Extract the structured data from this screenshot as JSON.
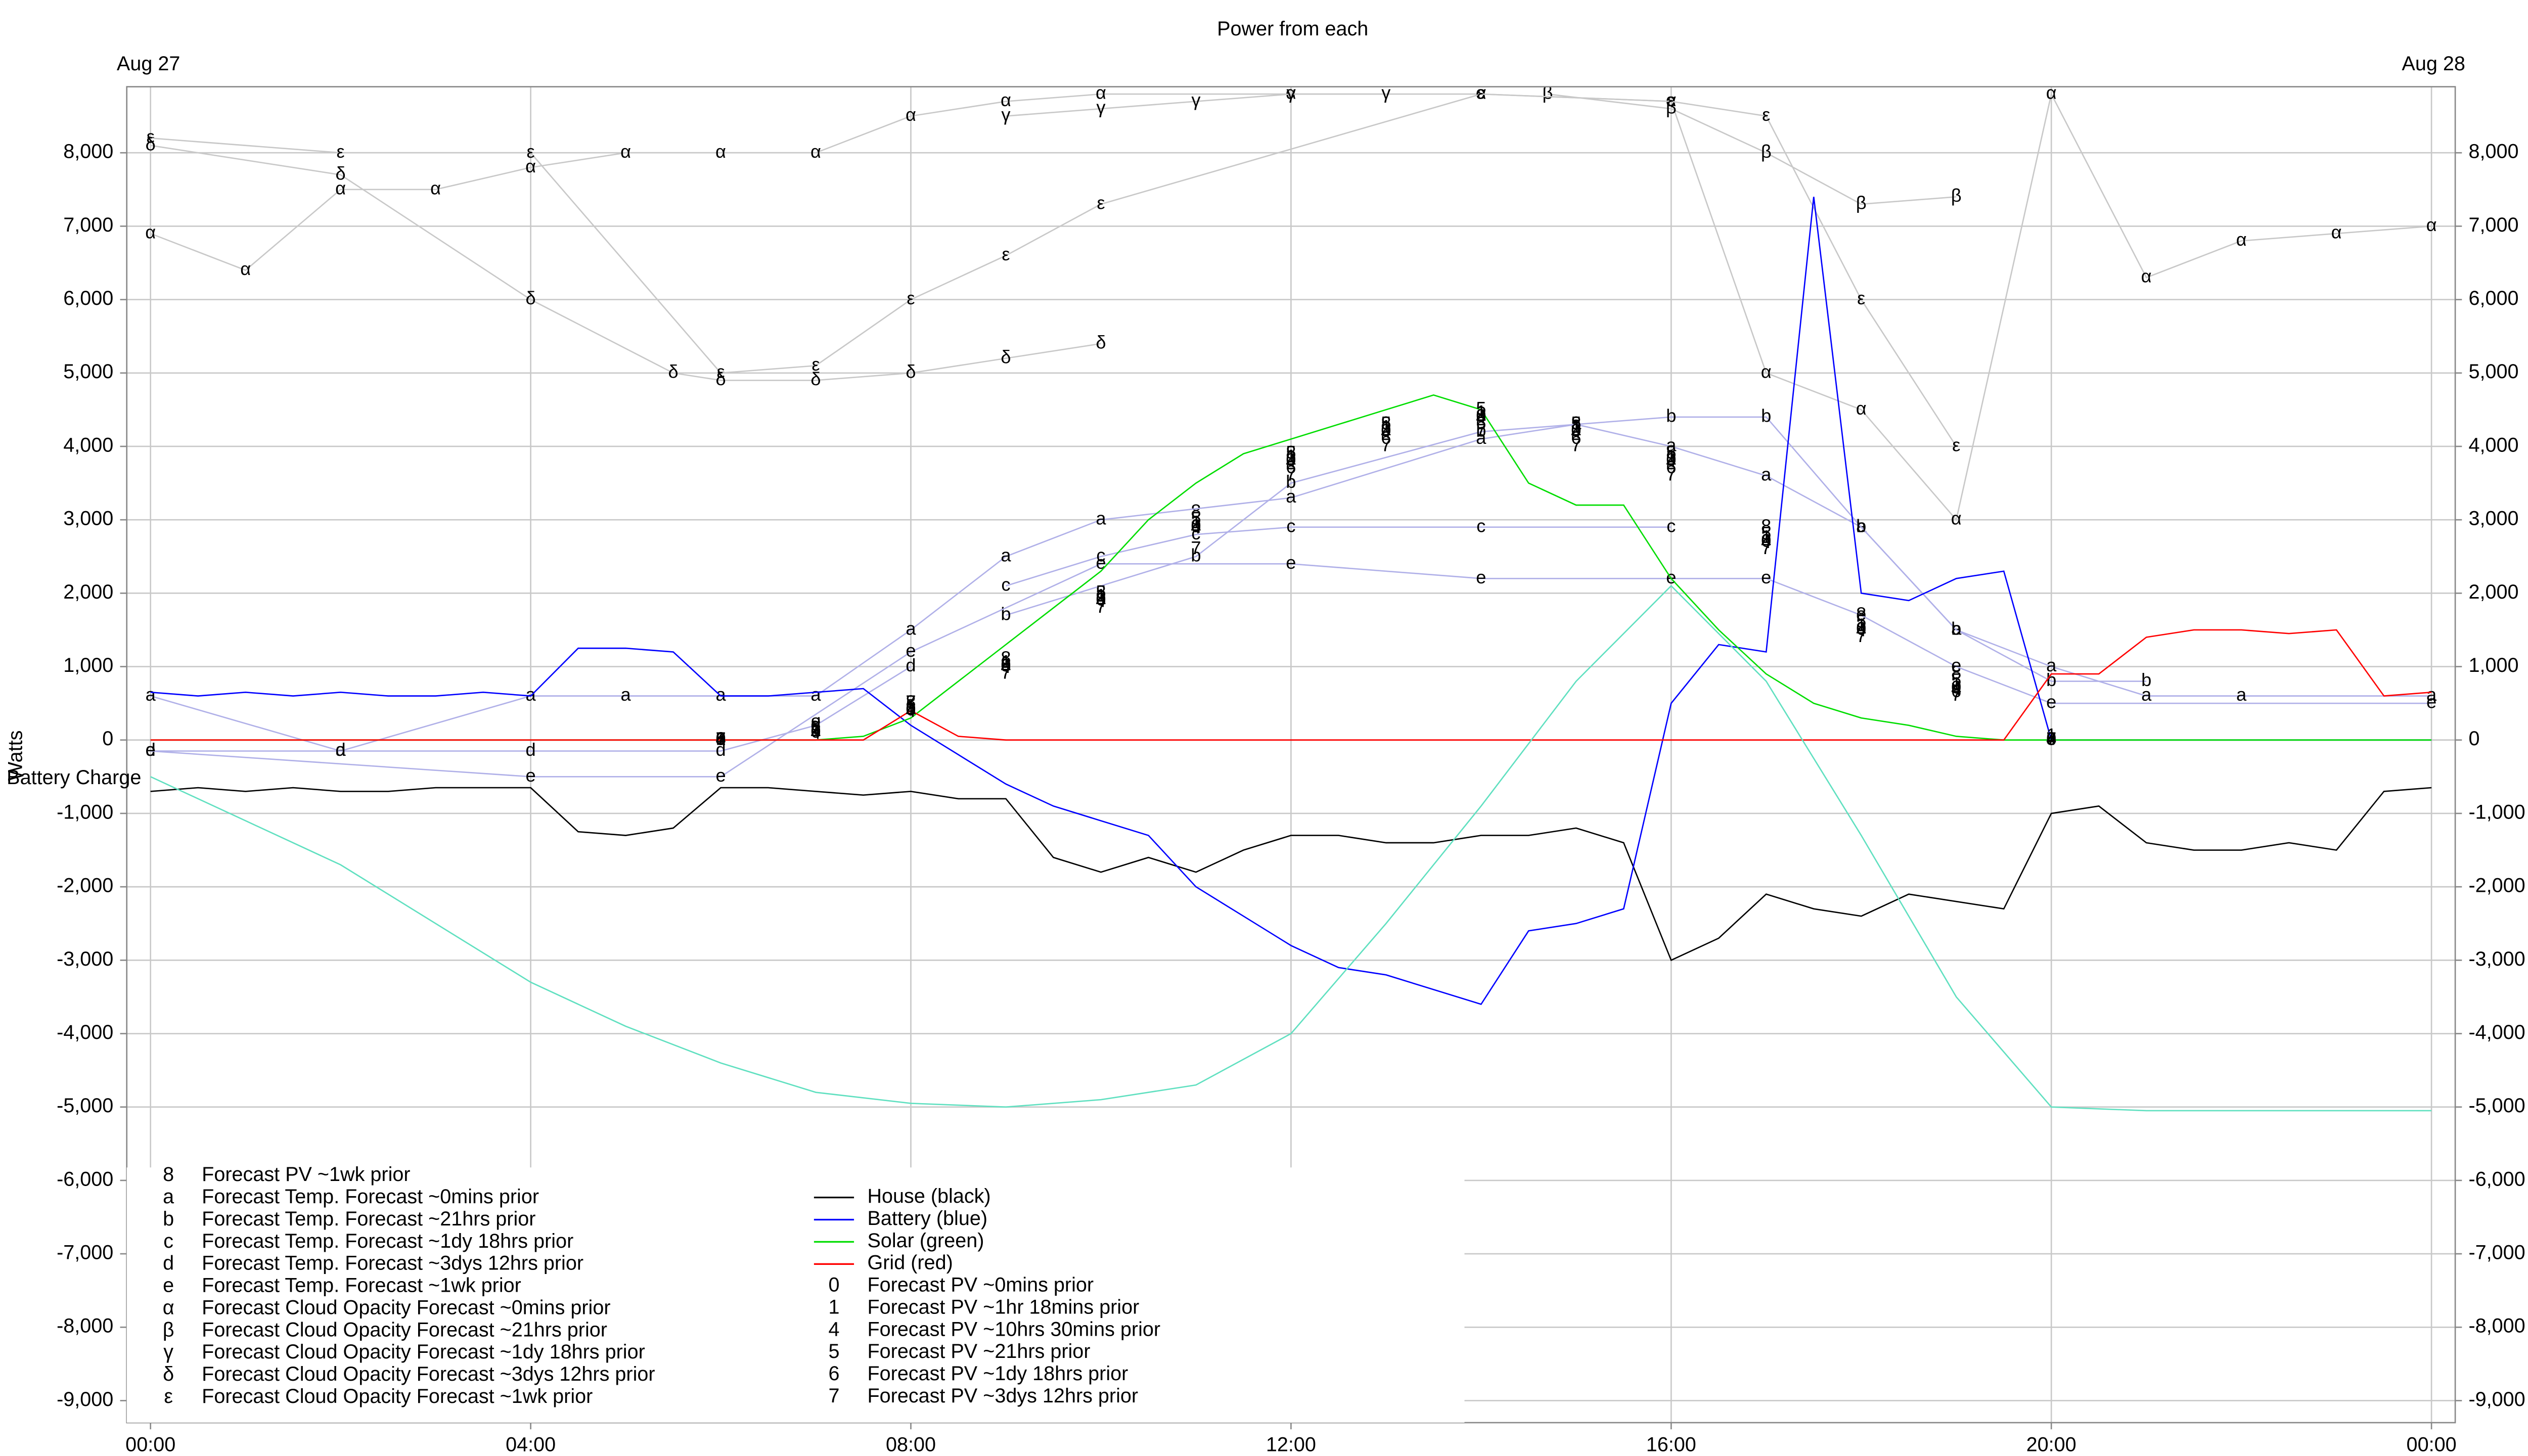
{
  "chart_data": {
    "type": "line",
    "title": "Power from each",
    "date_left": "Aug 27",
    "date_right": "Aug 28",
    "ylabel": "Watts",
    "xlim": [
      -0.25,
      24.25
    ],
    "ylim": [
      -9300,
      8900
    ],
    "grid": true,
    "xticks": [
      {
        "value": 0,
        "label": "00:00"
      },
      {
        "value": 4,
        "label": "04:00"
      },
      {
        "value": 8,
        "label": "08:00"
      },
      {
        "value": 12,
        "label": "12:00"
      },
      {
        "value": 16,
        "label": "16:00"
      },
      {
        "value": 20,
        "label": "20:00"
      },
      {
        "value": 24,
        "label": "00:00"
      }
    ],
    "yticks": [
      {
        "value": -9000,
        "label": "-9,000"
      },
      {
        "value": -8000,
        "label": "-8,000"
      },
      {
        "value": -7000,
        "label": "-7,000"
      },
      {
        "value": -6000,
        "label": "-6,000"
      },
      {
        "value": -5000,
        "label": "-5,000"
      },
      {
        "value": -4000,
        "label": "-4,000"
      },
      {
        "value": -3000,
        "label": "-3,000"
      },
      {
        "value": -2000,
        "label": "-2,000"
      },
      {
        "value": -1000,
        "label": "-1,000"
      },
      0,
      {
        "value": 1000,
        "label": "1,000"
      },
      {
        "value": 2000,
        "label": "2,000"
      },
      {
        "value": 3000,
        "label": "3,000"
      },
      {
        "value": 4000,
        "label": "4,000"
      },
      {
        "value": 5000,
        "label": "5,000"
      },
      {
        "value": 6000,
        "label": "6,000"
      },
      {
        "value": 7000,
        "label": "7,000"
      },
      {
        "value": 8000,
        "label": "8,000"
      }
    ],
    "x": [
      0,
      0.5,
      1,
      1.5,
      2,
      2.5,
      3,
      3.5,
      4,
      4.5,
      5,
      5.5,
      6,
      6.5,
      7,
      7.5,
      8,
      8.5,
      9,
      9.5,
      10,
      10.5,
      11,
      11.5,
      12,
      12.5,
      13,
      13.5,
      14,
      14.5,
      15,
      15.5,
      16,
      16.5,
      17,
      17.5,
      18,
      18.5,
      19,
      19.5,
      20,
      20.5,
      21,
      21.5,
      22,
      22.5,
      23,
      23.5,
      24
    ],
    "series": [
      {
        "name": "Forecast PV ~1wk prior",
        "marker": "8",
        "color": "#000000",
        "show_line": false,
        "x": [
          6,
          7,
          8,
          9,
          10,
          11,
          12,
          13,
          14,
          15,
          16,
          17,
          18,
          19,
          20
        ],
        "values": [
          0,
          200,
          500,
          1100,
          2000,
          3100,
          3900,
          4300,
          4400,
          4300,
          3900,
          2900,
          1700,
          900,
          0
        ]
      },
      {
        "name": "Forecast Temp. Forecast ~0mins prior",
        "marker": "a",
        "color": "#b0b0e8",
        "x": [
          0,
          2,
          4,
          5,
          6,
          7,
          8,
          9,
          10,
          12,
          14,
          15,
          16,
          17,
          18,
          19,
          20,
          21,
          22,
          24
        ],
        "values": [
          600,
          -150,
          600,
          600,
          600,
          600,
          1500,
          2500,
          3000,
          3300,
          4100,
          4300,
          4000,
          3600,
          2900,
          1500,
          1000,
          600,
          600,
          600
        ]
      },
      {
        "name": "Forecast Temp. Forecast ~21hrs prior",
        "marker": "b",
        "color": "#b0b0e8",
        "x": [
          9,
          11,
          12,
          14,
          16,
          17,
          18,
          19,
          20,
          21
        ],
        "values": [
          1700,
          2500,
          3500,
          4200,
          4400,
          4400,
          2900,
          1500,
          800,
          800
        ]
      },
      {
        "name": "Forecast Temp. Forecast ~1dy 18hrs prior",
        "marker": "c",
        "color": "#b0b0e8",
        "x": [
          9,
          10,
          11,
          12,
          14,
          16
        ],
        "values": [
          2100,
          2500,
          2800,
          2900,
          2900,
          2900
        ]
      },
      {
        "name": "Forecast Temp. Forecast ~3dys 12hrs prior",
        "marker": "d",
        "color": "#b0b0e8",
        "x": [
          0,
          2,
          4,
          6,
          7,
          8
        ],
        "values": [
          -150,
          -150,
          -150,
          -150,
          200,
          1000
        ]
      },
      {
        "name": "Forecast Temp. Forecast ~1wk prior",
        "marker": "e",
        "color": "#b0b0e8",
        "x": [
          0,
          4,
          6,
          8,
          10,
          12,
          14,
          16,
          17,
          18,
          19,
          20,
          24
        ],
        "values": [
          -150,
          -500,
          -500,
          1200,
          2400,
          2400,
          2200,
          2200,
          2200,
          1700,
          1000,
          500,
          500
        ]
      },
      {
        "name": "Forecast Cloud Opacity Forecast ~0mins prior",
        "marker": "α",
        "color": "#c8c8c8",
        "x": [
          0,
          1,
          2,
          3,
          4,
          5,
          6,
          7,
          8,
          9,
          10,
          12,
          14,
          16,
          17,
          18,
          19,
          20,
          21,
          22,
          23,
          24
        ],
        "values": [
          6900,
          6400,
          7500,
          7500,
          7800,
          8000,
          8000,
          8000,
          8500,
          8700,
          8800,
          8800,
          8800,
          8700,
          5000,
          4500,
          3000,
          8800,
          6300,
          6800,
          6900,
          7000
        ]
      },
      {
        "name": "Forecast Cloud Opacity Forecast ~21hrs prior",
        "marker": "β",
        "color": "#c8c8c8",
        "x": [
          14.7,
          16,
          17,
          18,
          19
        ],
        "values": [
          8800,
          8600,
          8000,
          7300,
          7400
        ]
      },
      {
        "name": "Forecast Cloud Opacity Forecast ~1dy 18hrs prior",
        "marker": "γ",
        "color": "#c8c8c8",
        "x": [
          9,
          10,
          11,
          12,
          13
        ],
        "values": [
          8500,
          8600,
          8700,
          8800,
          8800
        ]
      },
      {
        "name": "Forecast Cloud Opacity Forecast ~3dys 12hrs prior",
        "marker": "δ",
        "color": "#c8c8c8",
        "x": [
          0,
          2,
          4,
          5.5,
          6,
          7,
          8,
          9,
          10
        ],
        "values": [
          8100,
          7700,
          6000,
          5000,
          4900,
          4900,
          5000,
          5200,
          5400
        ]
      },
      {
        "name": "Forecast Cloud Opacity Forecast ~1wk prior",
        "marker": "ε",
        "color": "#c8c8c8",
        "x": [
          0,
          2,
          4,
          6,
          7,
          8,
          9,
          10,
          14,
          16,
          17,
          18,
          19
        ],
        "values": [
          8200,
          8000,
          8000,
          5000,
          5100,
          6000,
          6600,
          7300,
          8800,
          8700,
          8500,
          6000,
          4000
        ]
      },
      {
        "name": "House (black)",
        "color": "#000000",
        "values": [
          -700,
          -650,
          -700,
          -650,
          -700,
          -700,
          -650,
          -650,
          -650,
          -1250,
          -1300,
          -1200,
          -650,
          -650,
          -700,
          -750,
          -700,
          -800,
          -800,
          -1600,
          -1800,
          -1600,
          -1800,
          -1500,
          -1300,
          -1300,
          -1400,
          -1400,
          -1300,
          -1300,
          -1200,
          -1400,
          -3000,
          -2700,
          -2100,
          -2300,
          -2400,
          -2100,
          -2200,
          -2300,
          -1000,
          -900,
          -1400,
          -1500,
          -1500,
          -1400,
          -1500,
          -700,
          -650
        ]
      },
      {
        "name": "Battery (blue)",
        "color": "#0000ff",
        "values": [
          650,
          600,
          650,
          600,
          650,
          600,
          600,
          650,
          600,
          1250,
          1250,
          1200,
          600,
          600,
          650,
          700,
          200,
          -200,
          -600,
          -900,
          -1100,
          -1300,
          -2000,
          -2400,
          -2800,
          -3100,
          -3200,
          -3400,
          -3600,
          -2600,
          -2500,
          -2300,
          500,
          1300,
          1200,
          7400,
          2000,
          1900,
          2200,
          2300,
          0,
          0,
          0,
          0,
          0,
          0,
          0,
          0,
          0
        ]
      },
      {
        "name": "Solar (green)",
        "color": "#00dd00",
        "values": [
          0,
          0,
          0,
          0,
          0,
          0,
          0,
          0,
          0,
          0,
          0,
          0,
          0,
          0,
          0,
          50,
          300,
          800,
          1300,
          1800,
          2300,
          3000,
          3500,
          3900,
          4100,
          4300,
          4500,
          4700,
          4500,
          3500,
          3200,
          3200,
          2200,
          1500,
          900,
          500,
          300,
          200,
          50,
          0,
          0,
          0,
          0,
          0,
          0,
          0,
          0,
          0,
          0
        ]
      },
      {
        "name": "Grid (red)",
        "color": "#ff0000",
        "values": [
          0,
          0,
          0,
          0,
          0,
          0,
          0,
          0,
          0,
          0,
          0,
          0,
          0,
          0,
          0,
          0,
          400,
          50,
          0,
          0,
          0,
          0,
          0,
          0,
          0,
          0,
          0,
          0,
          0,
          0,
          0,
          0,
          0,
          0,
          0,
          0,
          0,
          0,
          0,
          0,
          900,
          900,
          1400,
          1500,
          1500,
          1450,
          1500,
          600,
          650
        ]
      },
      {
        "name": "Forecast PV ~0mins prior",
        "marker": "0",
        "color": "#000000",
        "show_line": false,
        "x": [
          6,
          7,
          8,
          9,
          10,
          11,
          12,
          13,
          14,
          15,
          16,
          17,
          18,
          19,
          20
        ],
        "values": [
          0,
          100,
          400,
          1000,
          1900,
          2900,
          3800,
          4200,
          4400,
          4200,
          3800,
          2700,
          1500,
          700,
          0
        ]
      },
      {
        "name": "Forecast PV ~1hr 18mins prior",
        "marker": "1",
        "color": "#000000",
        "show_line": false,
        "x": [
          6,
          7,
          8,
          9,
          10,
          11,
          12,
          13,
          14,
          15,
          16,
          17,
          18,
          19,
          20
        ],
        "values": [
          0,
          120,
          420,
          1050,
          1950,
          2950,
          3850,
          4250,
          4450,
          4250,
          3850,
          2750,
          1550,
          750,
          50
        ]
      },
      {
        "name": "Forecast PV ~10hrs 30mins prior",
        "marker": "4",
        "color": "#000000",
        "show_line": false,
        "x": [
          6,
          7,
          8,
          9,
          10,
          11,
          12,
          13,
          14,
          15,
          16,
          17,
          18,
          19,
          20
        ],
        "values": [
          0,
          80,
          380,
          980,
          1880,
          2880,
          3780,
          4180,
          4380,
          4180,
          3780,
          2680,
          1480,
          680,
          0
        ]
      },
      {
        "name": "Forecast PV ~21hrs prior",
        "marker": "5",
        "color": "#000000",
        "show_line": false,
        "x": [
          6,
          7,
          8,
          9,
          10,
          11,
          12,
          13,
          14,
          15,
          16,
          17,
          18,
          19,
          20
        ],
        "values": [
          0,
          150,
          450,
          1000,
          2000,
          3000,
          3900,
          4300,
          4500,
          4300,
          3900,
          2800,
          1600,
          800,
          0
        ]
      },
      {
        "name": "Forecast PV ~1dy 18hrs prior",
        "marker": "6",
        "color": "#000000",
        "show_line": false,
        "x": [
          6,
          7,
          8,
          9,
          10,
          11,
          12,
          13,
          14,
          15,
          16,
          17,
          18,
          19,
          20
        ],
        "values": [
          0,
          100,
          400,
          1000,
          1900,
          2900,
          3700,
          4100,
          4300,
          4100,
          3700,
          2700,
          1500,
          650,
          0
        ]
      },
      {
        "name": "Forecast PV ~3dys 12hrs prior",
        "marker": "7",
        "color": "#000000",
        "show_line": false,
        "x": [
          6,
          7,
          8,
          9,
          10,
          11,
          12,
          13,
          14,
          15,
          16,
          17,
          18,
          19,
          20
        ],
        "values": [
          0,
          150,
          500,
          900,
          1800,
          2600,
          3600,
          4000,
          4200,
          4000,
          3600,
          2600,
          1400,
          600,
          0
        ]
      },
      {
        "name": "Battery Charge",
        "color": "#60e0c0",
        "in_legend": false,
        "x": [
          0,
          1,
          2,
          3,
          4,
          5,
          6,
          7,
          8,
          9,
          10,
          11,
          12,
          13,
          14,
          15,
          16,
          17,
          18,
          19,
          20,
          21,
          22,
          23,
          24
        ],
        "values": [
          -500,
          -1100,
          -1700,
          -2500,
          -3300,
          -3900,
          -4400,
          -4800,
          -4950,
          -5000,
          -4900,
          -4700,
          -4000,
          -2500,
          -900,
          800,
          2100,
          800,
          -1300,
          -3500,
          -5000,
          -5050,
          -5050,
          -5050,
          -5050
        ]
      }
    ]
  }
}
